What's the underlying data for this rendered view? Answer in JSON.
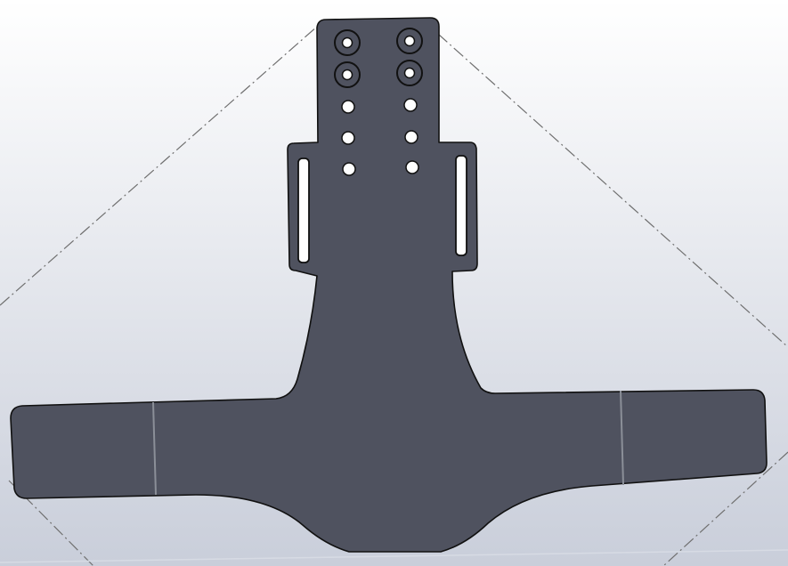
{
  "viewport": {
    "background_top": "#ffffff",
    "background_bottom": "#c9ceda",
    "floor_line_color": "#d7dbe4"
  },
  "part": {
    "fill_color": "#4f525f",
    "edge_color": "#111111",
    "bend_line_color": "#8b8f98",
    "hole_color": "#ffffff",
    "mounting_holes": 4,
    "small_holes": 6,
    "slots": 2,
    "bend_lines": 2
  },
  "sketch": {
    "line_color": "#6f6f6f",
    "style": "dash-dot"
  }
}
